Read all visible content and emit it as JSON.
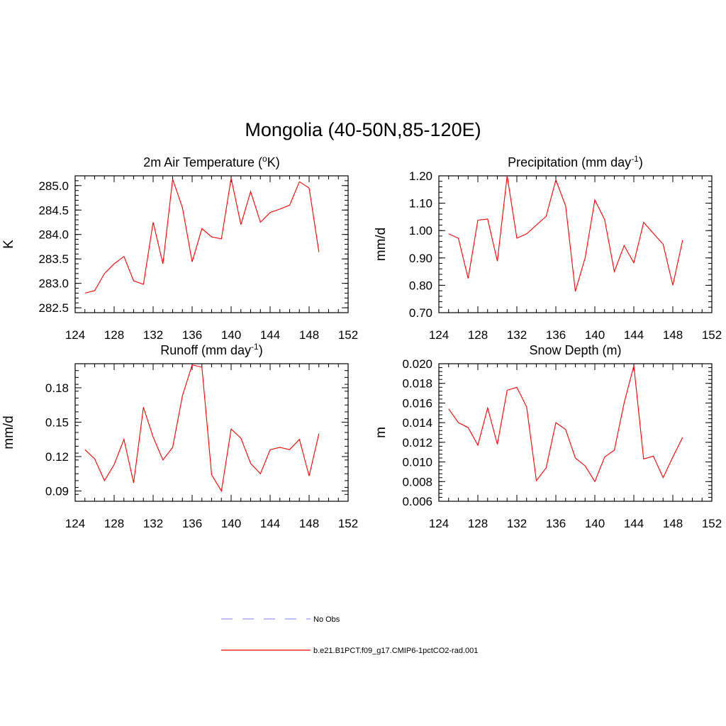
{
  "title": "Mongolia (40-50N,85-120E)",
  "legend": {
    "items": [
      {
        "label": "No Obs",
        "color": "#9999ff",
        "dash": true
      },
      {
        "label": "b.e21.B1PCT.f09_g17.CMIP6-1pctCO2-rad.001",
        "color": "#ff0000",
        "dash": false
      }
    ]
  },
  "chart_data": [
    {
      "type": "line",
      "title": "2m Air Temperature (",
      "title_sup": "o",
      "title_suffix": "K)",
      "ylabel": "K",
      "xlim": [
        124,
        152
      ],
      "xticks": [
        124,
        128,
        132,
        136,
        140,
        144,
        148,
        152
      ],
      "ylim": [
        282.4,
        285.2
      ],
      "yticks": [
        282.5,
        283.0,
        283.5,
        284.0,
        284.5,
        285.0
      ],
      "ytick_labels": [
        "282.5",
        "283.0",
        "283.5",
        "284.0",
        "284.5",
        "285.0"
      ],
      "ytick_minor": 0.1,
      "x": [
        125,
        126,
        127,
        128,
        129,
        130,
        131,
        132,
        133,
        134,
        135,
        136,
        137,
        138,
        139,
        140,
        141,
        142,
        143,
        144,
        145,
        146,
        147,
        148,
        149
      ],
      "series": [
        {
          "color": "#ff0000",
          "values": [
            282.8,
            282.85,
            283.2,
            283.4,
            283.55,
            283.05,
            282.98,
            284.25,
            283.4,
            285.13,
            284.55,
            283.44,
            284.12,
            283.95,
            283.91,
            285.15,
            284.2,
            284.88,
            284.25,
            284.45,
            284.52,
            284.6,
            285.08,
            284.95,
            283.64
          ]
        }
      ]
    },
    {
      "type": "line",
      "title": "Precipitation (mm day",
      "title_sup": "-1",
      "title_suffix": ")",
      "ylabel": "mm/d",
      "xlim": [
        124,
        152
      ],
      "xticks": [
        124,
        128,
        132,
        136,
        140,
        144,
        148,
        152
      ],
      "ylim": [
        0.7,
        1.2
      ],
      "yticks": [
        0.7,
        0.8,
        0.9,
        1.0,
        1.1,
        1.2
      ],
      "ytick_labels": [
        "0.70",
        "0.80",
        "0.90",
        "1.00",
        "1.10",
        "1.20"
      ],
      "ytick_minor": 0.02,
      "x": [
        125,
        126,
        127,
        128,
        129,
        130,
        131,
        132,
        133,
        134,
        135,
        136,
        137,
        138,
        139,
        140,
        141,
        142,
        143,
        144,
        145,
        146,
        147,
        148,
        149
      ],
      "series": [
        {
          "color": "#ff0000",
          "values": [
            0.988,
            0.972,
            0.825,
            1.038,
            1.042,
            0.888,
            1.2,
            0.972,
            0.988,
            1.02,
            1.052,
            1.185,
            1.09,
            0.778,
            0.9,
            1.112,
            1.04,
            0.85,
            0.945,
            0.882,
            1.03,
            0.99,
            0.95,
            0.8,
            0.965
          ]
        }
      ]
    },
    {
      "type": "line",
      "title": "Runoff (mm day",
      "title_sup": "-1",
      "title_suffix": ")",
      "ylabel": "mm/d",
      "xlim": [
        124,
        152
      ],
      "xticks": [
        124,
        128,
        132,
        136,
        140,
        144,
        148,
        152
      ],
      "ylim": [
        0.081,
        0.201
      ],
      "yticks": [
        0.09,
        0.12,
        0.15,
        0.18
      ],
      "ytick_labels": [
        "0.09",
        "0.12",
        "0.15",
        "0.18"
      ],
      "ytick_minor": 0.006,
      "x": [
        125,
        126,
        127,
        128,
        129,
        130,
        131,
        132,
        133,
        134,
        135,
        136,
        137,
        138,
        139,
        140,
        141,
        142,
        143,
        144,
        145,
        146,
        147,
        148,
        149
      ],
      "series": [
        {
          "color": "#ff0000",
          "values": [
            0.126,
            0.118,
            0.099,
            0.113,
            0.135,
            0.097,
            0.163,
            0.137,
            0.117,
            0.128,
            0.173,
            0.2,
            0.198,
            0.104,
            0.09,
            0.144,
            0.136,
            0.114,
            0.105,
            0.126,
            0.128,
            0.126,
            0.135,
            0.103,
            0.14
          ]
        }
      ]
    },
    {
      "type": "line",
      "title": "Snow Depth (m)",
      "title_sup": "",
      "title_suffix": "",
      "ylabel": "m",
      "xlim": [
        124,
        152
      ],
      "xticks": [
        124,
        128,
        132,
        136,
        140,
        144,
        148,
        152
      ],
      "ylim": [
        0.006,
        0.02
      ],
      "yticks": [
        0.006,
        0.008,
        0.01,
        0.012,
        0.014,
        0.016,
        0.018,
        0.02
      ],
      "ytick_labels": [
        "0.006",
        "0.008",
        "0.010",
        "0.012",
        "0.014",
        "0.016",
        "0.018",
        "0.020"
      ],
      "ytick_minor": 0.0004,
      "x": [
        125,
        126,
        127,
        128,
        129,
        130,
        131,
        132,
        133,
        134,
        135,
        136,
        137,
        138,
        139,
        140,
        141,
        142,
        143,
        144,
        145,
        146,
        147,
        148,
        149
      ],
      "series": [
        {
          "color": "#ff0000",
          "values": [
            0.0154,
            0.014,
            0.0135,
            0.0117,
            0.0155,
            0.0118,
            0.0173,
            0.0176,
            0.0156,
            0.0081,
            0.0094,
            0.014,
            0.0133,
            0.0104,
            0.0096,
            0.008,
            0.0105,
            0.0112,
            0.016,
            0.0198,
            0.0103,
            0.0106,
            0.0084,
            0.0105,
            0.0125
          ]
        }
      ]
    }
  ]
}
